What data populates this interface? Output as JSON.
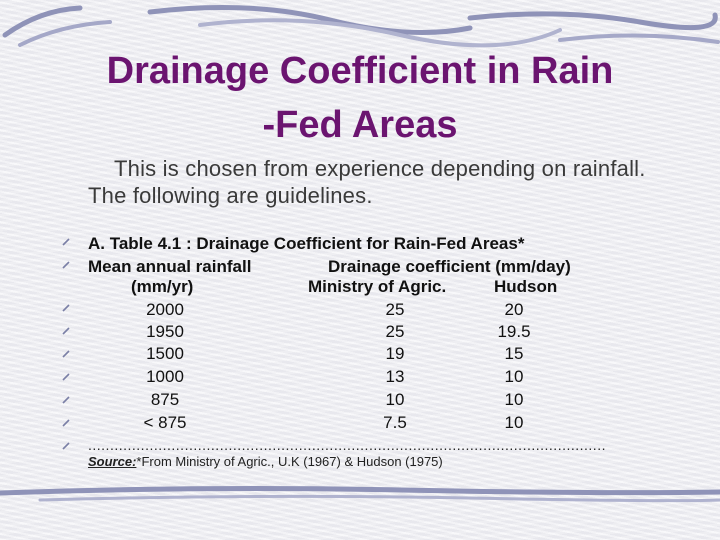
{
  "title_line1": "Drainage Coefficient in Rain",
  "title_line2": "-Fed Areas",
  "intro": "This is chosen from experience depending on rainfall.  The following are guidelines.",
  "table": {
    "caption": "A.   Table 4.1 :  Drainage Coefficient for Rain-Fed Areas*",
    "header1_left": "Mean annual rainfall",
    "header1_right": "Drainage coefficient (mm/day)",
    "header2_left": "(mm/yr)",
    "header2_mid": "Ministry of Agric.",
    "header2_right": "Hudson",
    "rows": [
      {
        "rainfall": "2000",
        "ministry": "25",
        "hudson": "20"
      },
      {
        "rainfall": "1950",
        "ministry": "25",
        "hudson": "19.5"
      },
      {
        "rainfall": "1500",
        "ministry": "19",
        "hudson": "15"
      },
      {
        "rainfall": "1000",
        "ministry": "13",
        "hudson": "10"
      },
      {
        "rainfall": "875",
        "ministry": "10",
        "hudson": "10"
      },
      {
        "rainfall": "< 875",
        "ministry": "7.5",
        "hudson": "10"
      }
    ],
    "dots": "......................................................................................................................",
    "source_label": "Source:",
    "source_text": "*From Ministry of Agric., U.K (1967) & Hudson (1975)"
  },
  "colors": {
    "title": "#6b1470",
    "swoosh": "#8f93b8"
  }
}
